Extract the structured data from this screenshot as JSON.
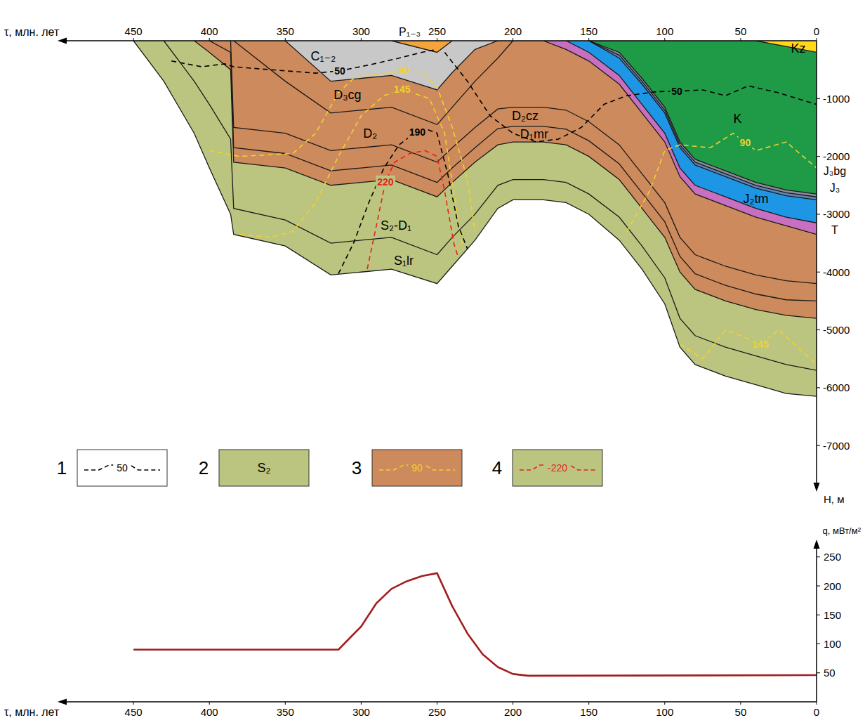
{
  "chart_data": [
    {
      "type": "area",
      "x_label": "τ, млн. лет",
      "y_label": "H, м",
      "xlim": [
        500,
        0
      ],
      "xticks": [
        450,
        400,
        350,
        300,
        250,
        200,
        150,
        100,
        50,
        0
      ],
      "ylim": [
        0,
        -7800
      ],
      "yticks": [
        -1000,
        -2000,
        -3000,
        -4000,
        -5000,
        -6000,
        -7000
      ],
      "x": [
        450,
        430,
        410,
        400,
        386,
        384,
        350,
        320,
        300,
        280,
        250,
        240,
        225,
        210,
        200,
        180,
        165,
        150,
        130,
        115,
        100,
        90,
        80,
        60,
        40,
        20,
        0
      ],
      "series": [
        {
          "name": "S₁lr",
          "color": "#bcc57f",
          "label_x": 272,
          "label_y": -3800,
          "values": [
            0,
            -700,
            -1600,
            -2200,
            -3000,
            -3350,
            -3550,
            -4050,
            -4000,
            -3950,
            -4200,
            -3900,
            -3450,
            -2900,
            -2750,
            -2750,
            -2800,
            -3000,
            -3450,
            -3950,
            -4550,
            -5300,
            -5600,
            -5800,
            -5950,
            -6100,
            -6150
          ]
        },
        {
          "name": "S₂-D₁",
          "color": "#bcc57f",
          "label_x": 277,
          "label_y": -3190,
          "values": [
            null,
            0,
            -700,
            -1100,
            -1700,
            -2900,
            -3100,
            -3500,
            -3450,
            -3400,
            -3700,
            -3400,
            -3000,
            -2500,
            -2400,
            -2400,
            -2450,
            -2650,
            -3050,
            -3550,
            -4100,
            -4800,
            -5100,
            -5300,
            -5450,
            -5600,
            -5700
          ]
        },
        {
          "name": "D₁mr",
          "color": "#cd8a5c",
          "label_x": 186,
          "label_y": -1610,
          "values": [
            null,
            null,
            0,
            -200,
            -500,
            -2100,
            -2200,
            -2500,
            -2450,
            -2400,
            -2700,
            -2450,
            -2100,
            -1800,
            -1750,
            -1750,
            -1800,
            -2000,
            -2400,
            -2900,
            -3400,
            -4000,
            -4300,
            -4500,
            -4650,
            -4750,
            -4800
          ]
        },
        {
          "name": "D₂cz",
          "color": "#cd8a5c",
          "label_x": 192,
          "label_y": -1300,
          "values": [
            null,
            null,
            null,
            0,
            -200,
            -1850,
            -1950,
            -2250,
            -2200,
            -2150,
            -2450,
            -2200,
            -1850,
            -1520,
            -1480,
            -1480,
            -1530,
            -1730,
            -2130,
            -2630,
            -3130,
            -3730,
            -4030,
            -4230,
            -4380,
            -4480,
            -4500
          ]
        },
        {
          "name": "D₂",
          "color": "#cd8a5c",
          "label_x": 294,
          "label_y": -1600,
          "values": [
            null,
            null,
            null,
            null,
            0,
            -1500,
            -1600,
            -1900,
            -1850,
            -1800,
            -2100,
            -1850,
            -1500,
            -1180,
            -1150,
            -1150,
            -1200,
            -1400,
            -1800,
            -2300,
            -2800,
            -3400,
            -3700,
            -3900,
            -4050,
            -4150,
            -4200
          ]
        },
        {
          "name": "D₃cg",
          "color": "#cd8a5c",
          "label_x": 309,
          "label_y": -930,
          "values": [
            null,
            null,
            null,
            null,
            null,
            0,
            -700,
            -1250,
            -1200,
            -1150,
            -1450,
            -1150,
            -700,
            -300,
            0,
            null,
            null,
            null,
            null,
            null,
            null,
            null,
            null,
            null,
            null,
            null,
            null
          ]
        },
        {
          "name": "C₁₋₂",
          "color": "#c8c8c8",
          "label_x": 325,
          "label_y": -270,
          "values": [
            null,
            null,
            null,
            null,
            null,
            null,
            0,
            -700,
            -650,
            -600,
            -850,
            -550,
            -150,
            0,
            null,
            null,
            null,
            null,
            null,
            null,
            null,
            null,
            null,
            null,
            null,
            null,
            null
          ]
        },
        {
          "name": "P₁₋₃",
          "color": "#f3a43a",
          "label_x": 268,
          "label_y": 150,
          "values": [
            null,
            null,
            null,
            null,
            null,
            null,
            null,
            null,
            null,
            0,
            -200,
            0,
            null,
            null,
            null,
            null,
            null,
            null,
            null,
            null,
            null,
            null,
            null,
            null,
            null,
            null,
            null
          ]
        },
        {
          "name": "T",
          "color": "#c86fc0",
          "label_x": -12,
          "label_y": -3270,
          "values": [
            null,
            null,
            null,
            null,
            null,
            null,
            null,
            null,
            null,
            null,
            null,
            null,
            null,
            null,
            null,
            0,
            -150,
            -350,
            -750,
            -1250,
            -1750,
            -2350,
            -2650,
            -2850,
            -3050,
            -3200,
            -3350
          ]
        },
        {
          "name": "J₂tm",
          "color": "#1e96e6",
          "label_x": 40,
          "label_y": -2730,
          "values": [
            null,
            null,
            null,
            null,
            null,
            null,
            null,
            null,
            null,
            null,
            null,
            null,
            null,
            null,
            null,
            null,
            0,
            -200,
            -600,
            -1100,
            -1600,
            -2200,
            -2500,
            -2700,
            -2900,
            -3050,
            -3150
          ]
        },
        {
          "name": "J₃",
          "color": "#5f86b5",
          "label_x": -12,
          "label_y": -2550,
          "values": [
            null,
            null,
            null,
            null,
            null,
            null,
            null,
            null,
            null,
            null,
            null,
            null,
            null,
            null,
            null,
            null,
            null,
            0,
            -300,
            -750,
            -1250,
            -1850,
            -2150,
            -2350,
            -2550,
            -2680,
            -2750
          ]
        },
        {
          "name": "J₃bg",
          "color": "#8a8a9a",
          "label_x": -12,
          "label_y": -2250,
          "values": [
            null,
            null,
            null,
            null,
            null,
            null,
            null,
            null,
            null,
            null,
            null,
            null,
            null,
            null,
            null,
            null,
            null,
            0,
            -250,
            -700,
            -1200,
            -1800,
            -2100,
            -2300,
            -2500,
            -2630,
            -2700
          ]
        },
        {
          "name": "K",
          "color": "#1f9a46",
          "label_x": 52,
          "label_y": -1350,
          "values": [
            null,
            null,
            null,
            null,
            null,
            null,
            null,
            null,
            null,
            null,
            null,
            null,
            null,
            null,
            null,
            null,
            null,
            0,
            -200,
            -650,
            -1150,
            -1750,
            -2050,
            -2250,
            -2450,
            -2580,
            -2650
          ]
        },
        {
          "name": "Kz",
          "color": "#ffd81a",
          "label_x": 12,
          "label_y": -130,
          "values": [
            null,
            null,
            null,
            null,
            null,
            null,
            null,
            null,
            null,
            null,
            null,
            null,
            null,
            null,
            null,
            null,
            null,
            null,
            null,
            null,
            null,
            null,
            null,
            null,
            0,
            -100,
            -200
          ]
        }
      ],
      "isotherms": [
        {
          "name": "50",
          "color": "#000000",
          "line_style": "dashed",
          "x": [
            425,
            405,
            390,
            384,
            360,
            330,
            314,
            295,
            275,
            260,
            250,
            248,
            245,
            230,
            215,
            200,
            185,
            170,
            155,
            140,
            125,
            105,
            92,
            75,
            60,
            45,
            25,
            0
          ],
          "values": [
            -350,
            -450,
            -400,
            -450,
            -500,
            -560,
            -520,
            -420,
            -300,
            -200,
            -150,
            null,
            -200,
            -700,
            -1300,
            -1600,
            -1750,
            -1700,
            -1500,
            -1100,
            -950,
            -880,
            -875,
            -850,
            -950,
            -780,
            -900,
            -1100
          ],
          "labels": [
            {
              "x": 314,
              "y": -520
            },
            {
              "x": 92,
              "y": -875
            }
          ]
        },
        {
          "name": "90",
          "color": "#f2d22c",
          "line_style": "dashed",
          "x": [
            400,
            380,
            345,
            330,
            315,
            305,
            295,
            280,
            270,
            260,
            250,
            240,
            230,
            225,
            200,
            125,
            110,
            100,
            90,
            70,
            55,
            40,
            20,
            0
          ],
          "values": [
            -1900,
            -2000,
            -1950,
            -1600,
            -900,
            -650,
            -600,
            -550,
            -500,
            -550,
            -800,
            -1500,
            -2400,
            -3300,
            null,
            -3300,
            -2600,
            -1900,
            -1800,
            -1850,
            -1600,
            -1900,
            -1750,
            -2200
          ],
          "labels": [
            {
              "x": 272,
              "y": -510
            },
            {
              "x": 47,
              "y": -1760
            }
          ]
        },
        {
          "name": "145",
          "color": "#f2d22c",
          "line_style": "dashed",
          "x": [
            380,
            360,
            345,
            330,
            315,
            300,
            285,
            273,
            255,
            245,
            238,
            233,
            200,
            90,
            75,
            60,
            50,
            37,
            25,
            0
          ],
          "values": [
            -3350,
            -3400,
            -3300,
            -2800,
            -2000,
            -1300,
            -950,
            -840,
            -1000,
            -1600,
            -2800,
            -3600,
            null,
            -5250,
            -5500,
            -5000,
            -5100,
            -5250,
            -5000,
            -5600
          ],
          "labels": [
            {
              "x": 273,
              "y": -840
            },
            {
              "x": 37,
              "y": -5250
            }
          ]
        },
        {
          "name": "190",
          "color": "#000000",
          "line_style": "dashed",
          "x": [
            315,
            305,
            295,
            285,
            275,
            265,
            258,
            250,
            243,
            236,
            230
          ],
          "values": [
            -4030,
            -3500,
            -2800,
            -2200,
            -1800,
            -1600,
            -1520,
            -1600,
            -2300,
            -3200,
            -3600
          ],
          "labels": [
            {
              "x": 263,
              "y": -1580
            }
          ]
        },
        {
          "name": "220",
          "color": "#e8201a",
          "line_style": "dashed",
          "x": [
            296,
            290,
            284,
            278,
            268,
            258,
            250,
            245,
            239,
            236
          ],
          "values": [
            -3950,
            -3200,
            -2440,
            -2100,
            -1950,
            -1900,
            -2000,
            -2600,
            -3500,
            -3750
          ],
          "labels": [
            {
              "x": 284,
              "y": -2440
            }
          ]
        }
      ],
      "legend_entries": [
        {
          "number": "1",
          "text": "50",
          "fill": "#ffffff",
          "line_color": "#000000"
        },
        {
          "number": "2",
          "text": "S₂",
          "fill": "#bcc57f"
        },
        {
          "number": "3",
          "text": "90",
          "fill": "#cd8a5c",
          "line_color": "#f2d22c"
        },
        {
          "number": "4",
          "text": "-220",
          "fill": "#bcc57f",
          "line_color": "#e8201a"
        }
      ]
    },
    {
      "type": "line",
      "x_label": "τ, млн. лет",
      "y_label": "q, мВт/м²",
      "xlim": [
        500,
        0
      ],
      "xticks": [
        450,
        400,
        350,
        300,
        250,
        200,
        150,
        100,
        50,
        0
      ],
      "ylim": [
        0,
        280
      ],
      "yticks": [
        50,
        100,
        150,
        200,
        250
      ],
      "x": [
        450,
        315,
        300,
        290,
        280,
        270,
        260,
        250,
        240,
        230,
        220,
        210,
        200,
        190,
        0
      ],
      "series": [
        {
          "color": "#a31f1f",
          "values": [
            90,
            90,
            130,
            170,
            195,
            208,
            217,
            222,
            165,
            118,
            82,
            60,
            48,
            45,
            46
          ]
        }
      ]
    }
  ]
}
